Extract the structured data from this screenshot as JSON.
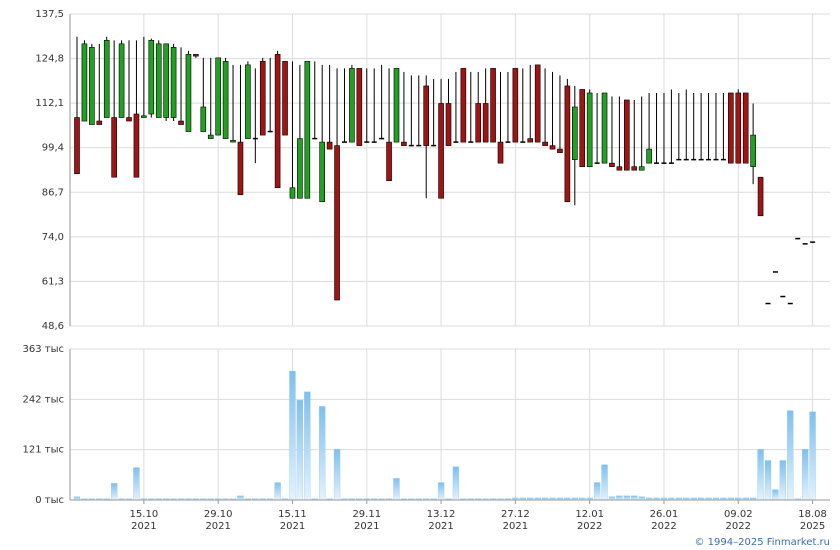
{
  "chart_data": [
    {
      "type": "candlestick",
      "categories": [
        null,
        null,
        null,
        null,
        null,
        null,
        null,
        null,
        null,
        "15.10\n2021",
        null,
        null,
        null,
        null,
        null,
        null,
        null,
        null,
        null,
        "29.10\n2021",
        null,
        null,
        null,
        null,
        null,
        null,
        null,
        null,
        null,
        "15.11\n2021",
        null,
        null,
        null,
        null,
        null,
        null,
        null,
        null,
        null,
        "29.11\n2021",
        null,
        null,
        null,
        null,
        null,
        null,
        null,
        null,
        null,
        "13.12\n2021",
        null,
        null,
        null,
        null,
        null,
        null,
        null,
        null,
        null,
        "27.12\n2021",
        null,
        null,
        null,
        null,
        null,
        null,
        null,
        null,
        null,
        "12.01\n2022",
        null,
        null,
        null,
        null,
        null,
        null,
        null,
        null,
        null,
        "26.01\n2022",
        null,
        null,
        null,
        null,
        null,
        null,
        null,
        null,
        null,
        "09.02\n2022",
        null,
        null,
        null,
        null,
        null,
        null,
        null,
        null,
        null,
        "18.08\n2025"
      ],
      "series": [
        {
          "name": "open",
          "values": [
            108,
            107,
            106,
            107,
            108,
            108,
            108,
            108,
            109,
            108,
            109,
            108,
            108,
            108,
            107,
            104,
            126,
            104,
            102,
            103,
            102,
            101,
            101,
            102,
            102,
            124,
            104,
            126,
            124,
            85,
            85,
            85,
            102,
            84,
            101,
            100,
            101,
            101,
            122,
            101,
            101,
            102,
            101,
            101,
            101,
            100,
            100,
            117,
            100,
            112,
            112,
            101,
            122,
            101,
            112,
            112,
            122,
            101,
            101,
            122,
            101,
            102,
            123,
            101,
            100,
            99,
            117,
            96,
            116,
            94,
            95,
            95,
            95,
            94,
            113,
            94,
            93,
            95,
            95,
            95,
            95,
            96,
            96,
            96,
            96,
            96,
            96,
            96,
            115,
            115,
            115,
            94,
            91,
            55,
            64,
            57,
            55,
            73.5,
            72,
            72.5
          ]
        },
        {
          "name": "high",
          "values": [
            131,
            130,
            129,
            129,
            131,
            130,
            130,
            130,
            130,
            131,
            130.5,
            130,
            129,
            129,
            128,
            127,
            126,
            125,
            125,
            125,
            125,
            123,
            123,
            124,
            122,
            125,
            125,
            127,
            124,
            124,
            123,
            124,
            124,
            123,
            123,
            122,
            122,
            123,
            122,
            122,
            122,
            123,
            122,
            122,
            121,
            120,
            120,
            120,
            119,
            119,
            119,
            121,
            122,
            121,
            121,
            122,
            122,
            121,
            121,
            122,
            122,
            123,
            123,
            122,
            121,
            120,
            119,
            117,
            116,
            116,
            115,
            115,
            114,
            114,
            113,
            113,
            114,
            115,
            115,
            115,
            116,
            115,
            116,
            115,
            115,
            115,
            115,
            115,
            115,
            116,
            115,
            112,
            91,
            55,
            64,
            57,
            55,
            73.5,
            72,
            72.5
          ]
        },
        {
          "name": "low",
          "values": [
            92,
            107,
            106,
            106,
            108,
            91,
            108,
            107,
            91,
            108,
            108,
            108,
            107,
            107,
            106,
            104,
            125,
            104,
            102,
            103,
            102,
            101,
            86,
            102,
            95,
            103,
            104,
            88,
            103,
            85,
            85,
            85,
            102,
            84,
            99,
            56,
            101,
            101,
            100,
            101,
            101,
            102,
            90,
            101,
            100,
            100,
            100,
            85,
            100,
            85,
            100,
            101,
            101,
            101,
            101,
            101,
            101,
            95,
            101,
            101,
            101,
            101,
            101,
            100,
            99,
            98,
            84,
            83,
            94,
            94,
            95,
            95,
            94,
            93,
            93,
            93,
            93,
            95,
            95,
            95,
            95,
            96,
            96,
            96,
            96,
            96,
            96,
            96,
            95,
            95,
            95,
            89,
            80,
            55,
            64,
            57,
            55,
            73.5,
            72,
            72.5
          ]
        },
        {
          "name": "close",
          "values": [
            92,
            129,
            128,
            106,
            130,
            91,
            129,
            107,
            91,
            108.5,
            130,
            129,
            129,
            128,
            106,
            126,
            125.5,
            111,
            103,
            125,
            124,
            101.5,
            86,
            123,
            102,
            103,
            104,
            88,
            103,
            88,
            102,
            124,
            102,
            101,
            99,
            56,
            101,
            122,
            100,
            101,
            101,
            102,
            90,
            122,
            100,
            100,
            100,
            100,
            100,
            85,
            100,
            101,
            101,
            101,
            101,
            101,
            101,
            95,
            101,
            101,
            101,
            101,
            101,
            100,
            99,
            98,
            84,
            111,
            94,
            115,
            95,
            115,
            94,
            93,
            93,
            93,
            94,
            99,
            95,
            95,
            95,
            96,
            96,
            96,
            96,
            96,
            96,
            96,
            95,
            95,
            95,
            103,
            80,
            55,
            64,
            57,
            55,
            73.5,
            72,
            72.5
          ]
        }
      ],
      "up_color": "#22a022",
      "down_color": "#a01414",
      "ylim": [
        48.6,
        137.5
      ],
      "yticks": [
        {
          "value": 48.6,
          "label": "48,6"
        },
        {
          "value": 61.3,
          "label": "61,3"
        },
        {
          "value": 74,
          "label": "74,0"
        },
        {
          "value": 86.7,
          "label": "86,7"
        },
        {
          "value": 99.4,
          "label": "99,4"
        },
        {
          "value": 112.1,
          "label": "112,1"
        },
        {
          "value": 124.8,
          "label": "124,8"
        },
        {
          "value": 137.5,
          "label": "137,5"
        }
      ],
      "grid": true
    },
    {
      "type": "bar",
      "values": [
        8,
        3,
        3,
        3,
        3,
        40,
        3,
        3,
        78,
        3,
        3,
        3,
        3,
        3,
        3,
        3,
        3,
        3,
        3,
        3,
        3,
        3,
        10,
        3,
        3,
        3,
        3,
        42,
        3,
        310,
        240,
        260,
        3,
        225,
        3,
        122,
        3,
        3,
        3,
        3,
        3,
        3,
        3,
        52,
        3,
        3,
        3,
        3,
        3,
        42,
        3,
        80,
        3,
        3,
        3,
        3,
        3,
        3,
        3,
        5,
        5,
        5,
        5,
        5,
        5,
        5,
        5,
        5,
        5,
        5,
        42,
        85,
        8,
        10,
        10,
        10,
        8,
        5,
        5,
        5,
        5,
        5,
        5,
        5,
        5,
        5,
        5,
        5,
        5,
        5,
        5,
        5,
        122,
        95,
        25,
        95,
        215,
        3,
        122,
        212
      ],
      "color": "#8ec8f0",
      "ylim": [
        0,
        363
      ],
      "yticks": [
        {
          "value": 0,
          "label": "0 тыс"
        },
        {
          "value": 121,
          "label": "121 тыс"
        },
        {
          "value": 242,
          "label": "242 тыс"
        },
        {
          "value": 363,
          "label": "363 тыс"
        }
      ],
      "grid": true
    }
  ],
  "footer": "© 1994–2025 Finmarket.ru"
}
